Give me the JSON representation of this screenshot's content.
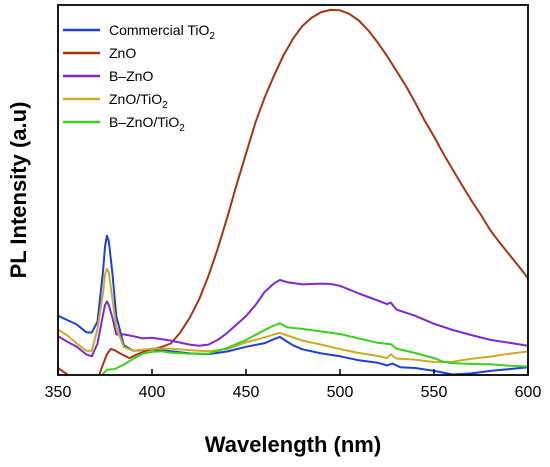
{
  "chart_data": {
    "type": "line",
    "xlabel": "Wavelength (nm)",
    "ylabel": "PL Intensity (a.u)",
    "xlim": [
      350,
      600
    ],
    "ylim": [
      0,
      100
    ],
    "x_ticks": [
      350,
      400,
      450,
      500,
      550,
      600
    ],
    "grid": false,
    "legend_position": "top-left",
    "series": [
      {
        "name": "Commercial TiO2",
        "color": "#1f3fd6",
        "points": [
          [
            350,
            17.6
          ],
          [
            355,
            16.4
          ],
          [
            360,
            15.2
          ],
          [
            365,
            13.1
          ],
          [
            368,
            13.0
          ],
          [
            371,
            16.0
          ],
          [
            374,
            30.0
          ],
          [
            375,
            36.5
          ],
          [
            376,
            39.5
          ],
          [
            377,
            38.0
          ],
          [
            379,
            29.0
          ],
          [
            381,
            17.5
          ],
          [
            385,
            9.5
          ],
          [
            390,
            8.0
          ],
          [
            395,
            8.2
          ],
          [
            400,
            8.4
          ],
          [
            410,
            7.9
          ],
          [
            420,
            7.3
          ],
          [
            430,
            7.1
          ],
          [
            440,
            7.8
          ],
          [
            450,
            9.1
          ],
          [
            460,
            10.1
          ],
          [
            465,
            11.2
          ],
          [
            468,
            11.8
          ],
          [
            471,
            10.8
          ],
          [
            475,
            9.5
          ],
          [
            480,
            8.4
          ],
          [
            490,
            7.3
          ],
          [
            500,
            6.5
          ],
          [
            510,
            5.4
          ],
          [
            520,
            4.7
          ],
          [
            525,
            4.0
          ],
          [
            528,
            4.5
          ],
          [
            532,
            3.5
          ],
          [
            540,
            3.3
          ],
          [
            550,
            2.5
          ],
          [
            560,
            1.5
          ],
          [
            570,
            1.8
          ],
          [
            580,
            2.5
          ],
          [
            590,
            3.0
          ],
          [
            600,
            3.5
          ]
        ]
      },
      {
        "name": "ZnO",
        "color": "#a83418",
        "points": [
          [
            350,
            3.3
          ],
          [
            355,
            1.5
          ],
          [
            360,
            0.2
          ],
          [
            365,
            -2.1
          ],
          [
            370,
            -1.8
          ],
          [
            373,
            3.0
          ],
          [
            376,
            7.0
          ],
          [
            378,
            8.5
          ],
          [
            380,
            8.2
          ],
          [
            384,
            7.0
          ],
          [
            388,
            6.0
          ],
          [
            392,
            7.0
          ],
          [
            397,
            8.0
          ],
          [
            400,
            8.4
          ],
          [
            405,
            9.0
          ],
          [
            410,
            10.0
          ],
          [
            415,
            13.0
          ],
          [
            420,
            17.0
          ],
          [
            425,
            22.0
          ],
          [
            430,
            28.5
          ],
          [
            435,
            36.0
          ],
          [
            440,
            44.5
          ],
          [
            445,
            53.5
          ],
          [
            450,
            62.0
          ],
          [
            455,
            70.5
          ],
          [
            460,
            77.5
          ],
          [
            465,
            83.5
          ],
          [
            470,
            89.0
          ],
          [
            475,
            93.5
          ],
          [
            480,
            97.0
          ],
          [
            485,
            99.3
          ],
          [
            490,
            100.8
          ],
          [
            495,
            101.4
          ],
          [
            500,
            101.3
          ],
          [
            505,
            100.3
          ],
          [
            510,
            98.5
          ],
          [
            515,
            95.8
          ],
          [
            520,
            92.5
          ],
          [
            525,
            88.8
          ],
          [
            530,
            84.7
          ],
          [
            535,
            80.6
          ],
          [
            540,
            76.0
          ],
          [
            545,
            71.1
          ],
          [
            550,
            66.7
          ],
          [
            555,
            62.0
          ],
          [
            560,
            57.6
          ],
          [
            565,
            53.3
          ],
          [
            570,
            49.1
          ],
          [
            575,
            45.2
          ],
          [
            580,
            41.0
          ],
          [
            585,
            37.6
          ],
          [
            590,
            34.4
          ],
          [
            595,
            31.2
          ],
          [
            600,
            27.9
          ]
        ]
      },
      {
        "name": "B–ZnO",
        "color": "#7b2ad0",
        "points": [
          [
            350,
            12.0
          ],
          [
            355,
            10.5
          ],
          [
            360,
            9.1
          ],
          [
            365,
            7.0
          ],
          [
            368,
            6.5
          ],
          [
            371,
            10.0
          ],
          [
            374,
            18.0
          ],
          [
            375,
            20.5
          ],
          [
            376,
            21.5
          ],
          [
            377,
            20.5
          ],
          [
            379,
            17.0
          ],
          [
            381,
            12.5
          ],
          [
            385,
            12.5
          ],
          [
            390,
            12.0
          ],
          [
            395,
            11.4
          ],
          [
            400,
            11.6
          ],
          [
            405,
            11.2
          ],
          [
            410,
            10.8
          ],
          [
            420,
            9.7
          ],
          [
            425,
            9.4
          ],
          [
            430,
            9.7
          ],
          [
            435,
            11.0
          ],
          [
            440,
            12.9
          ],
          [
            450,
            17.5
          ],
          [
            455,
            20.5
          ],
          [
            460,
            24.2
          ],
          [
            465,
            26.5
          ],
          [
            468,
            27.4
          ],
          [
            472,
            26.8
          ],
          [
            480,
            26.2
          ],
          [
            490,
            26.4
          ],
          [
            495,
            26.3
          ],
          [
            500,
            25.8
          ],
          [
            510,
            23.7
          ],
          [
            520,
            21.8
          ],
          [
            525,
            20.8
          ],
          [
            527,
            21.2
          ],
          [
            530,
            19.3
          ],
          [
            540,
            17.6
          ],
          [
            550,
            15.4
          ],
          [
            560,
            13.7
          ],
          [
            570,
            12.3
          ],
          [
            580,
            11.0
          ],
          [
            590,
            10.2
          ],
          [
            600,
            9.4
          ]
        ]
      },
      {
        "name": "ZnO/TiO2",
        "color": "#c9ad27",
        "points": [
          [
            350,
            13.8
          ],
          [
            355,
            12.2
          ],
          [
            360,
            10.0
          ],
          [
            365,
            8.0
          ],
          [
            368,
            8.0
          ],
          [
            371,
            14.0
          ],
          [
            374,
            24.0
          ],
          [
            375,
            29.0
          ],
          [
            376,
            30.5
          ],
          [
            377,
            29.5
          ],
          [
            379,
            22.0
          ],
          [
            381,
            14.5
          ],
          [
            385,
            9.0
          ],
          [
            390,
            8.0
          ],
          [
            395,
            8.3
          ],
          [
            400,
            8.6
          ],
          [
            410,
            8.6
          ],
          [
            420,
            8.2
          ],
          [
            430,
            7.9
          ],
          [
            440,
            8.5
          ],
          [
            450,
            10.3
          ],
          [
            460,
            11.7
          ],
          [
            465,
            12.5
          ],
          [
            468,
            12.9
          ],
          [
            472,
            12.2
          ],
          [
            480,
            10.8
          ],
          [
            490,
            9.7
          ],
          [
            500,
            8.5
          ],
          [
            510,
            7.4
          ],
          [
            520,
            6.6
          ],
          [
            525,
            6.0
          ],
          [
            527,
            7.0
          ],
          [
            530,
            5.9
          ],
          [
            540,
            5.6
          ],
          [
            550,
            4.9
          ],
          [
            560,
            5.0
          ],
          [
            570,
            5.8
          ],
          [
            580,
            6.4
          ],
          [
            590,
            7.2
          ],
          [
            600,
            7.8
          ]
        ]
      },
      {
        "name": "B–ZnO/TiO2",
        "color": "#3cd11e",
        "points": [
          [
            350,
            0.8
          ],
          [
            355,
            0.0
          ],
          [
            360,
            -0.6
          ],
          [
            365,
            -2.0
          ],
          [
            370,
            -1.2
          ],
          [
            373,
            1.2
          ],
          [
            376,
            2.8
          ],
          [
            380,
            3.0
          ],
          [
            385,
            4.2
          ],
          [
            390,
            5.8
          ],
          [
            395,
            7.2
          ],
          [
            400,
            7.7
          ],
          [
            405,
            7.9
          ],
          [
            410,
            7.5
          ],
          [
            420,
            7.2
          ],
          [
            430,
            7.2
          ],
          [
            440,
            8.8
          ],
          [
            450,
            11.0
          ],
          [
            460,
            13.7
          ],
          [
            465,
            15.0
          ],
          [
            468,
            15.5
          ],
          [
            472,
            14.4
          ],
          [
            480,
            14.0
          ],
          [
            490,
            13.3
          ],
          [
            500,
            12.6
          ],
          [
            510,
            11.4
          ],
          [
            520,
            10.2
          ],
          [
            527,
            9.8
          ],
          [
            530,
            8.6
          ],
          [
            540,
            7.4
          ],
          [
            550,
            6.0
          ],
          [
            555,
            5.0
          ],
          [
            560,
            4.6
          ],
          [
            570,
            4.4
          ],
          [
            580,
            4.3
          ],
          [
            590,
            3.9
          ],
          [
            600,
            3.7
          ]
        ]
      }
    ]
  }
}
